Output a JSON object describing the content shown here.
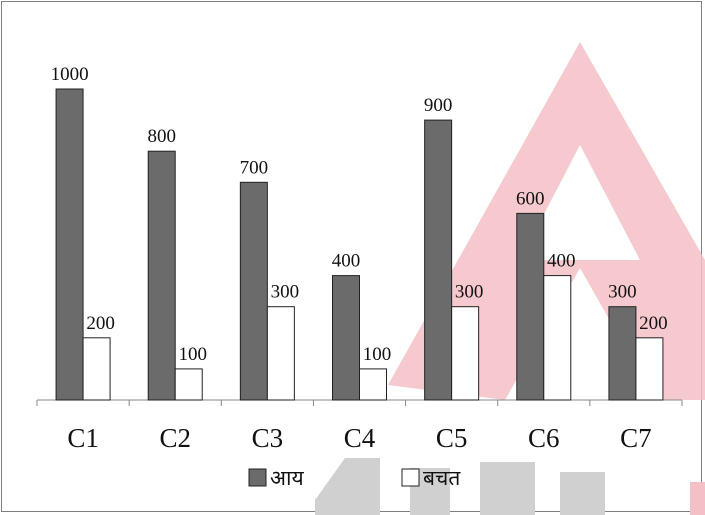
{
  "chart_data": {
    "type": "bar",
    "categories": [
      "C1",
      "C2",
      "C3",
      "C4",
      "C5",
      "C6",
      "C7"
    ],
    "series": [
      {
        "name": "आय",
        "values": [
          1000,
          800,
          700,
          400,
          900,
          600,
          300
        ],
        "color": "#6b6b6b"
      },
      {
        "name": "बचत",
        "values": [
          200,
          100,
          300,
          100,
          300,
          400,
          200
        ],
        "color": "#ffffff"
      }
    ],
    "title": "",
    "xlabel": "",
    "ylabel": "",
    "ylim": [
      0,
      1000
    ],
    "grid": false,
    "legend_position": "bottom",
    "data_labels": true
  }
}
